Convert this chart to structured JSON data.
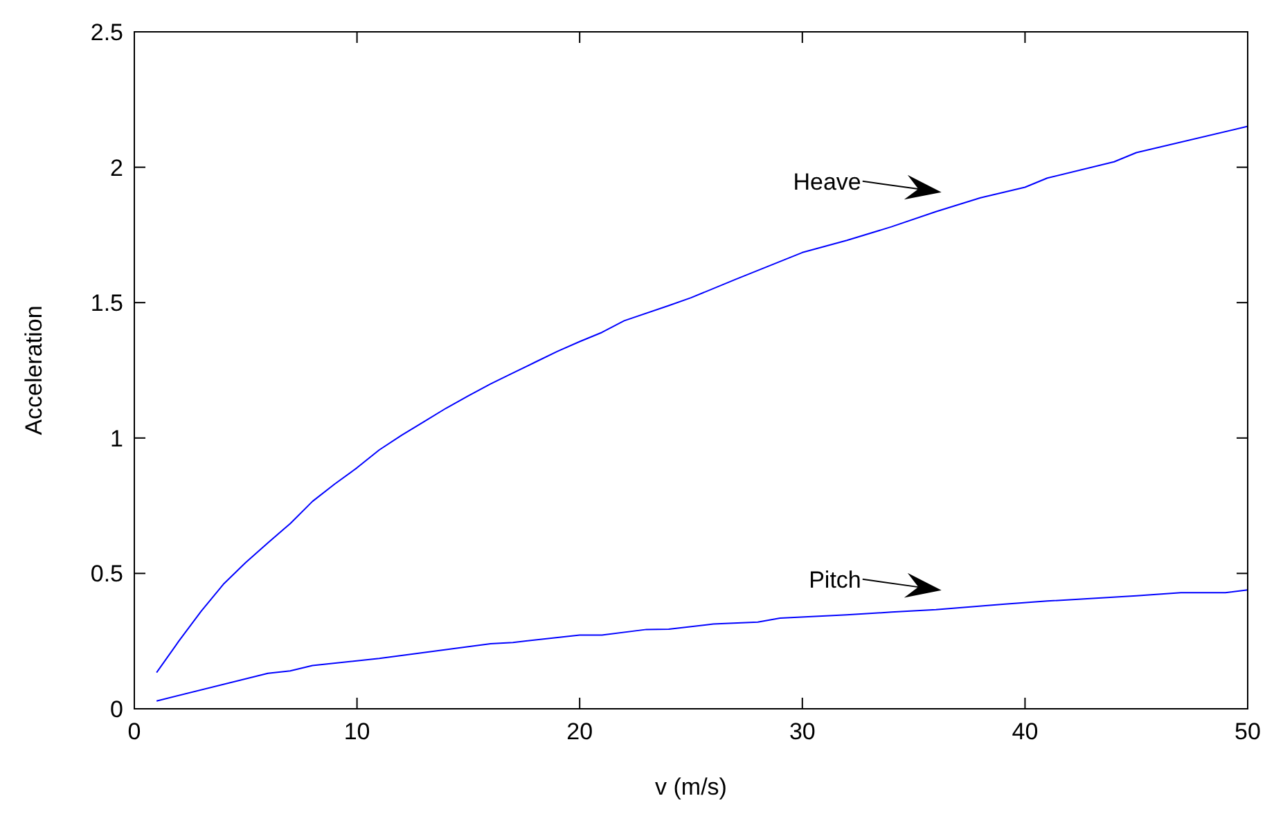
{
  "chart_data": {
    "type": "line",
    "xlabel": "v (m/s)",
    "ylabel": "Acceleration",
    "xlim": [
      0,
      50
    ],
    "ylim": [
      0,
      2.5
    ],
    "xticks": [
      0,
      10,
      20,
      30,
      40,
      50
    ],
    "yticks": [
      0,
      0.5,
      1,
      1.5,
      2,
      2.5
    ],
    "grid": false,
    "legend": false,
    "marker": "none",
    "line_style": "solid",
    "series": [
      {
        "name": "Heave",
        "color": "#0000ff",
        "x": [
          1,
          2,
          3,
          4,
          5,
          6,
          7,
          8,
          9,
          10,
          11,
          12,
          13,
          14,
          15,
          16,
          17,
          18,
          19,
          20,
          21,
          22,
          24,
          25,
          27,
          30,
          32,
          34,
          36,
          38,
          40,
          41,
          44,
          45,
          50
        ],
        "values": [
          0.134,
          0.25,
          0.36,
          0.46,
          0.54,
          0.613,
          0.684,
          0.766,
          0.83,
          0.89,
          0.956,
          1.01,
          1.06,
          1.11,
          1.156,
          1.2,
          1.24,
          1.28,
          1.32,
          1.356,
          1.39,
          1.433,
          1.489,
          1.518,
          1.586,
          1.685,
          1.73,
          1.78,
          1.836,
          1.887,
          1.926,
          1.96,
          2.02,
          2.054,
          2.151
        ]
      },
      {
        "name": "Pitch",
        "color": "#0000ff",
        "x": [
          1,
          6,
          7,
          8,
          11,
          16,
          17,
          20,
          21,
          23,
          24,
          26,
          28,
          29,
          32,
          34,
          36,
          39,
          41,
          45,
          47,
          49,
          50
        ],
        "values": [
          0.029,
          0.131,
          0.14,
          0.16,
          0.186,
          0.24,
          0.245,
          0.272,
          0.272,
          0.293,
          0.294,
          0.313,
          0.32,
          0.335,
          0.347,
          0.357,
          0.366,
          0.386,
          0.398,
          0.417,
          0.429,
          0.429,
          0.439
        ]
      }
    ]
  }
}
